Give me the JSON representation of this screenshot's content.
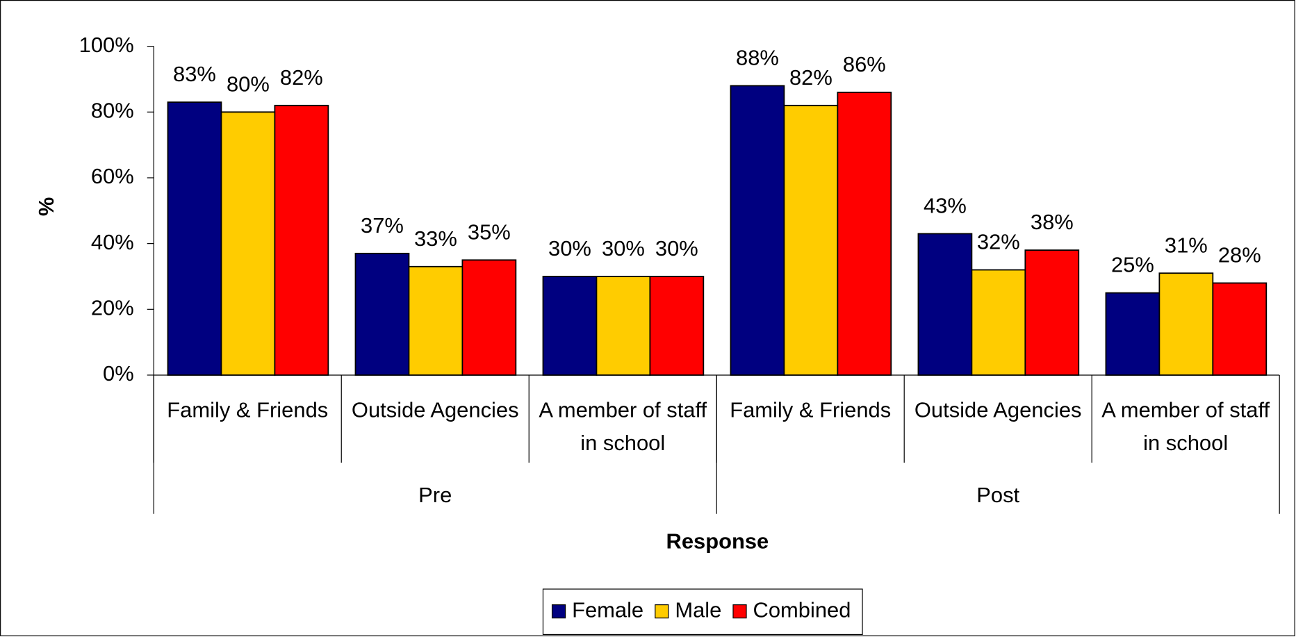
{
  "chart_data": {
    "type": "bar",
    "x_label": "Response",
    "y_label": "%",
    "categories": [
      "Family & Friends",
      "Outside Agencies",
      "A member of staff in school",
      "Family & Friends",
      "Outside Agencies",
      "A member of staff in school"
    ],
    "groups": [
      "Pre",
      "Post"
    ],
    "series": [
      {
        "name": "Female",
        "color": "#000080",
        "values": [
          83,
          37,
          30,
          88,
          43,
          25
        ],
        "value_labels": [
          "83%",
          "37%",
          "30%",
          "88%",
          "43%",
          "25%"
        ]
      },
      {
        "name": "Male",
        "color": "#FFCC00",
        "values": [
          80,
          33,
          30,
          82,
          32,
          31
        ],
        "value_labels": [
          "80%",
          "33%",
          "30%",
          "82%",
          "32%",
          "31%"
        ]
      },
      {
        "name": "Combined",
        "color": "#FF0000",
        "values": [
          82,
          35,
          30,
          86,
          38,
          28
        ],
        "value_labels": [
          "82%",
          "35%",
          "30%",
          "86%",
          "38%",
          "28%"
        ]
      }
    ],
    "ylim": [
      0,
      100
    ],
    "yticks": [
      {
        "value": 0,
        "label": "0%"
      },
      {
        "value": 20,
        "label": "20%"
      },
      {
        "value": 40,
        "label": "40%"
      },
      {
        "value": 60,
        "label": "60%"
      },
      {
        "value": 80,
        "label": "80%"
      },
      {
        "value": 100,
        "label": "100%"
      }
    ],
    "legend": "bottom"
  }
}
